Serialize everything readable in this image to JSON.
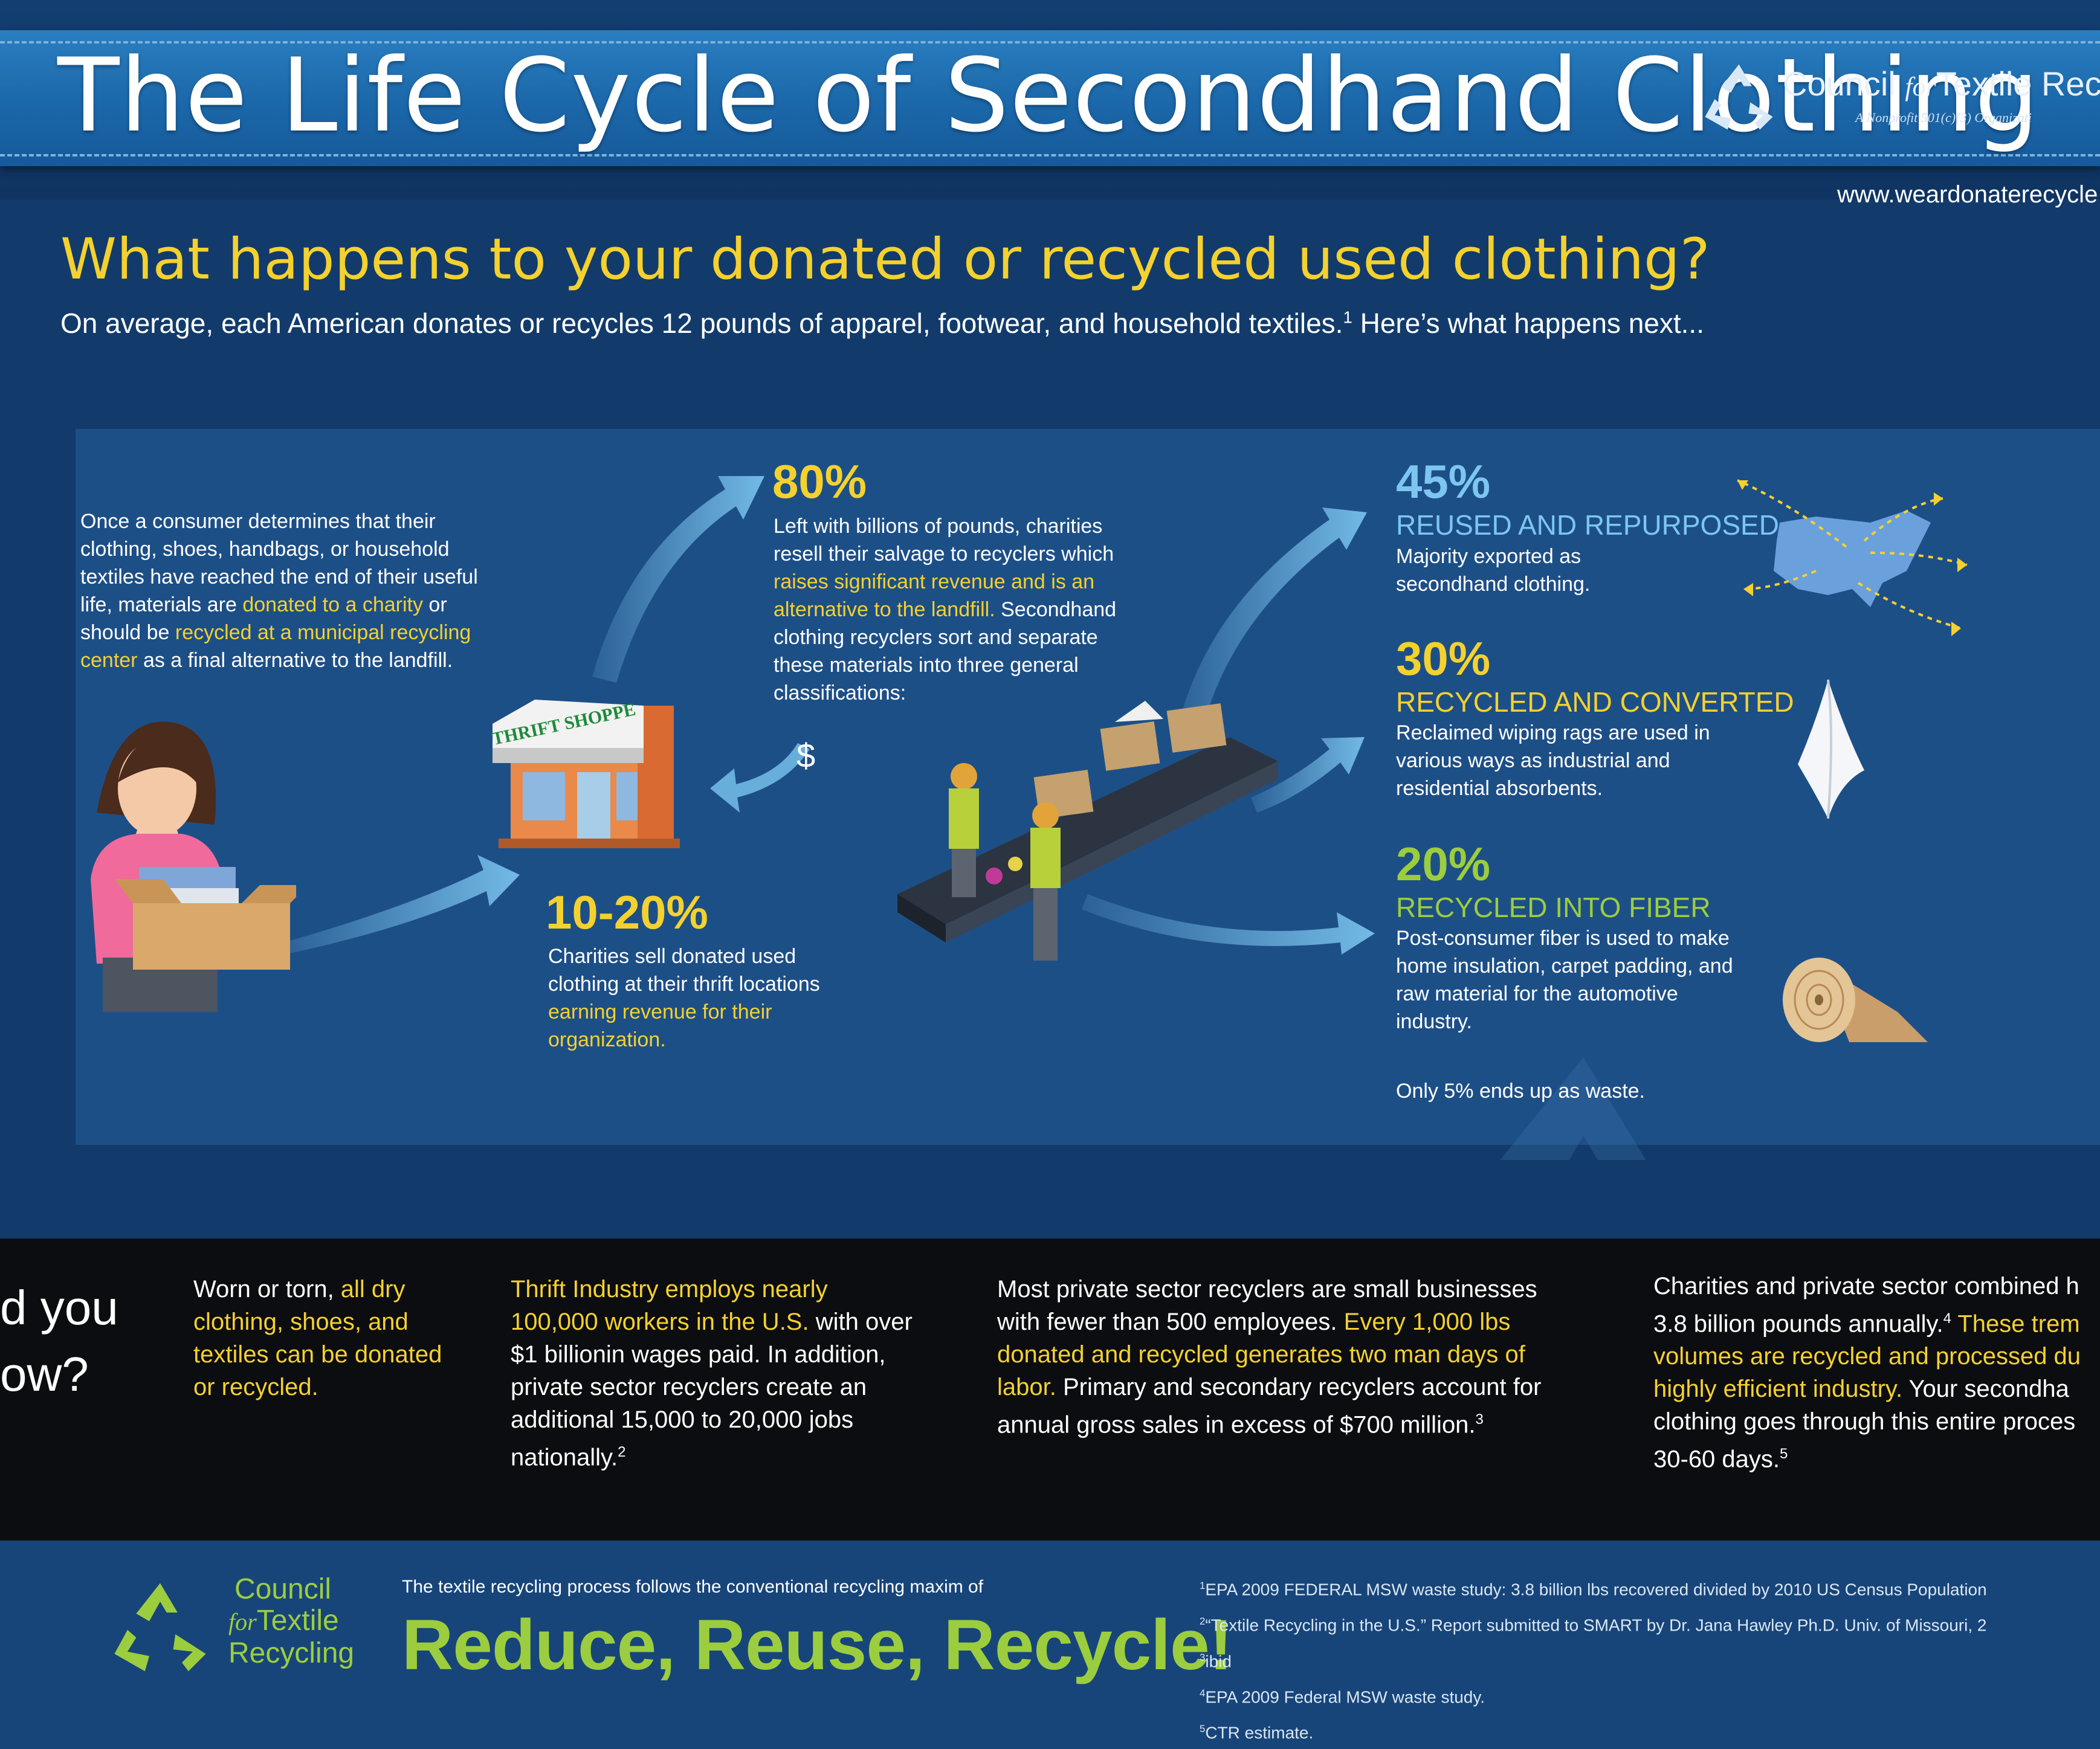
{
  "header": {
    "title": "The Life Cycle of Secondhand Clothing",
    "org_name_1": "Council ",
    "org_name_for": "for",
    "org_name_2": "Textile Recy",
    "org_subtitle": "A Nonprofit 501(c)(3) Organizati",
    "website": "www.weardonaterecycle"
  },
  "intro": {
    "question": "What happens to your donated or recycled used clothing?",
    "text": "On average, each American donates or recycles 12 pounds of apparel, footwear, and household textiles.",
    "footnote_ref": "1",
    "text_end": " Here’s what happens next..."
  },
  "consumer": {
    "part1": "Once a consumer determines that their clothing, shoes, handbags, or household textiles have reached the end of their useful life, materials are ",
    "hl1": "donated to a charity",
    "part2": " or should be ",
    "hl2": "recycled at a municipal recycling center",
    "part3": " as a final alternative to the landfill."
  },
  "thrift": {
    "sign": "THRIFT SHOPPE",
    "dollar": "$",
    "percent": "10-20%",
    "text": "Charities sell donated used clothing at their thrift locations ",
    "hl": "earning revenue for their organization."
  },
  "recyclers": {
    "percent": "80%",
    "part1": "Left with billions of pounds, charities resell their salvage to recyclers which ",
    "hl": "raises significant revenue and is an alternative to the landfill.",
    "part2": " Secondhand clothing recyclers sort and separate these materials into three general classifications:"
  },
  "outcomes": [
    {
      "percent": "45%",
      "title": "REUSED AND REPURPOSED",
      "text": "Majority exported as secondhand clothing.",
      "icon": "usa-map-icon"
    },
    {
      "percent": "30%",
      "title": "RECYCLED AND CONVERTED",
      "text": "Reclaimed wiping rags are used in various ways as industrial and residential absorbents.",
      "icon": "wiping-rag-icon"
    },
    {
      "percent": "20%",
      "title": "RECYCLED INTO FIBER",
      "text": "Post-consumer fiber is used to make home insulation, carpet padding, and raw material for the automotive industry.",
      "icon": "fiber-roll-icon"
    }
  ],
  "waste_note": "Only 5% ends up as waste.",
  "facts": {
    "did_you_1": "d you",
    "did_you_2": "ow?",
    "f1_a": "Worn or torn, ",
    "f1_hl": "all dry clothing, shoes, and textiles can be donated or recycled.",
    "f2_hl": "Thrift Industry employs nearly 100,000 workers in the U.S.",
    "f2_a": " with over $1 billionin wages paid. In addition, private sector recyclers create an additional 15,000 to 20,000 jobs nationally.",
    "f2_ref": "2",
    "f3_a": "Most private sector recyclers are small businesses with fewer than 500 employees. ",
    "f3_hl": "Every 1,000 lbs donated and recycled generates two man days of labor.",
    "f3_b": " Primary and secondary recyclers account for annual gross sales in excess of $700 million.",
    "f3_ref": "3",
    "f4_a": "Charities and private sector combined h 3.8 billion pounds annually.",
    "f4_ref": "4",
    "f4_hl": " These trem volumes are recycled and processed du highly efficient industry.",
    "f4_b": " Your secondha clothing goes through this entire proces 30-60 days.",
    "f4_ref2": "5"
  },
  "footer": {
    "org_line1": "Council",
    "org_line2_for": "for",
    "org_line2": "Textile",
    "org_line3": "Recycling",
    "maxim_intro": "The textile recycling process follows the conventional recycling maxim of",
    "maxim": "Reduce, Reuse, Recycle!",
    "footnotes": [
      {
        "n": "1",
        "text": "EPA 2009 FEDERAL MSW waste study: 3.8 billion lbs recovered  divided by 2010 US Census Population"
      },
      {
        "n": "2",
        "text": "“Textile Recycling in the U.S.” Report submitted to SMART by Dr. Jana Hawley Ph.D.  Univ. of Missouri, 2"
      },
      {
        "n": "3",
        "text": "ibid"
      },
      {
        "n": "4",
        "text": "EPA 2009 Federal MSW waste study."
      },
      {
        "n": "5",
        "text": "CTR estimate."
      }
    ]
  },
  "colors": {
    "background": "#123b6b",
    "banner": "#1c69ab",
    "highlight_yellow": "#f4d12e",
    "accent_blue": "#7cc6f0",
    "accent_green": "#9ccd3e",
    "facts_band": "#0c0d10"
  }
}
